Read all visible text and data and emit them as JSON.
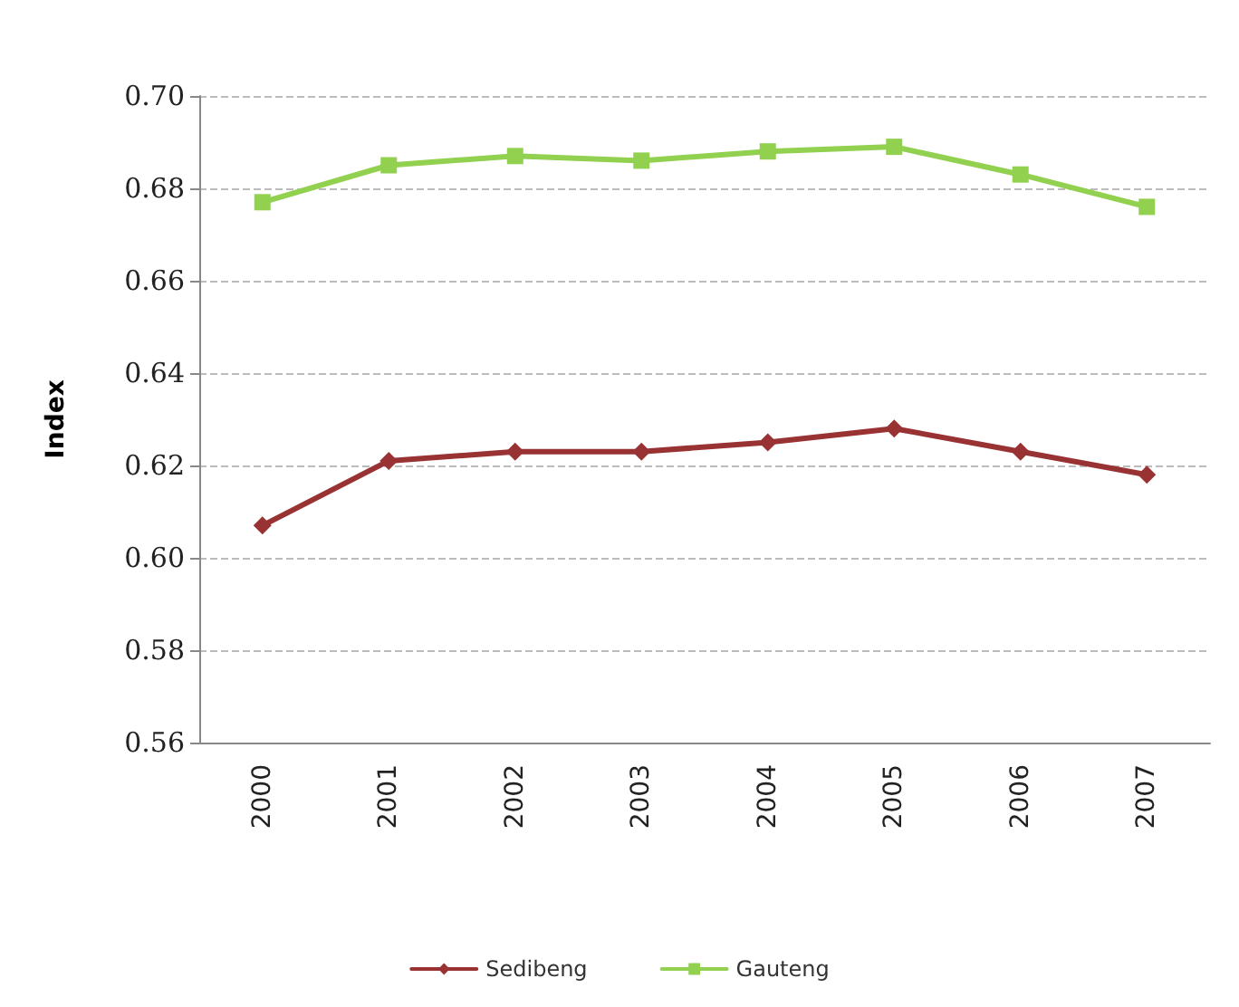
{
  "chart_data": {
    "type": "line",
    "ylabel": "Index",
    "categories": [
      "2000",
      "2001",
      "2002",
      "2003",
      "2004",
      "2005",
      "2006",
      "2007"
    ],
    "series": [
      {
        "name": "Sedibeng",
        "color": "#993333",
        "marker": "diamond",
        "values": [
          0.607,
          0.621,
          0.623,
          0.623,
          0.625,
          0.628,
          0.623,
          0.618
        ]
      },
      {
        "name": "Gauteng",
        "color": "#92d050",
        "marker": "square",
        "values": [
          0.677,
          0.685,
          0.687,
          0.686,
          0.688,
          0.689,
          0.683,
          0.676
        ]
      }
    ],
    "ylim": [
      0.56,
      0.7
    ],
    "yticks": [
      0.56,
      0.58,
      {
        "value": 0.6,
        "label": "0.60"
      },
      0.62,
      0.64,
      0.66,
      0.68,
      {
        "value": 0.7,
        "label": "0.70"
      }
    ],
    "grid": "y",
    "legend": "bottom"
  }
}
